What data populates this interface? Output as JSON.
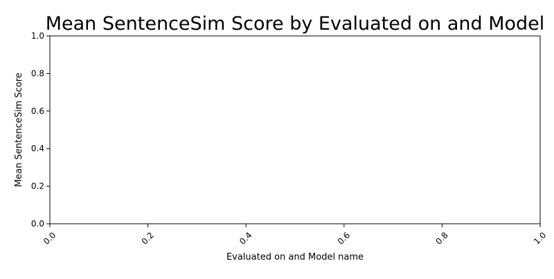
{
  "chart_data": {
    "type": "bar",
    "title": "Mean SentenceSim Score by Evaluated on and Model",
    "xlabel": "Evaluated on and Model name",
    "ylabel": "Mean SentenceSim Score",
    "categories": [],
    "series": [],
    "xlim": [
      0.0,
      1.0
    ],
    "ylim": [
      0.0,
      1.0
    ],
    "x_ticks": [
      "0.0",
      "0.2",
      "0.4",
      "0.6",
      "0.8",
      "1.0"
    ],
    "y_ticks": [
      "0.0",
      "0.2",
      "0.4",
      "0.6",
      "0.8",
      "1.0"
    ],
    "x_tick_rotation": 45,
    "grid": false,
    "legend": "none"
  }
}
